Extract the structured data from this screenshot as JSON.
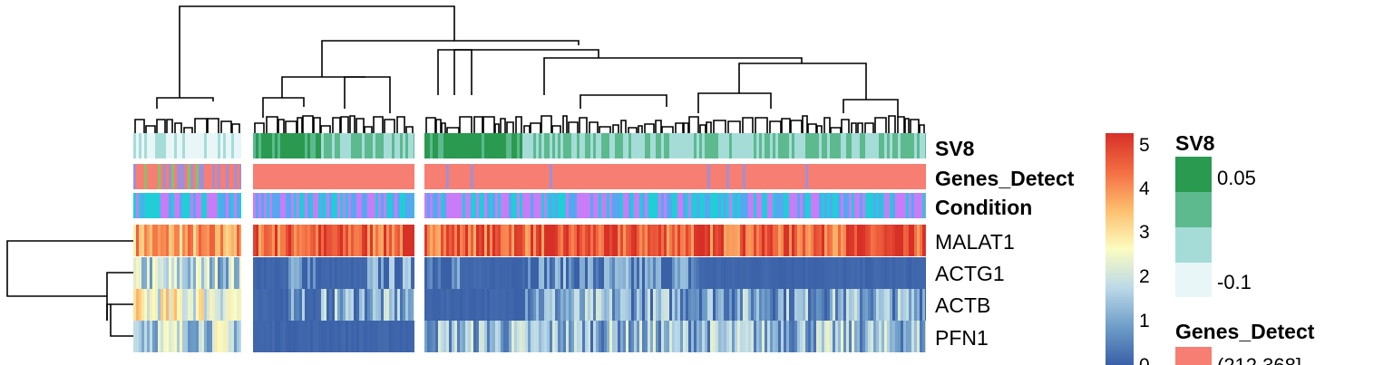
{
  "chart_data": {
    "type": "heatmap",
    "rows": [
      "MALAT1",
      "ACTG1",
      "ACTB",
      "PFN1"
    ],
    "column_annotations": [
      "SV8",
      "Genes_Detect",
      "Condition"
    ],
    "color_scale": {
      "min": 0,
      "max": 5,
      "ticks": [
        "0",
        "1",
        "2",
        "3",
        "4",
        "5"
      ],
      "colors": [
        "#3a60a8",
        "#6f9ec9",
        "#bcd9e8",
        "#fbfcc0",
        "#fdbf6f",
        "#f46d43",
        "#d73027"
      ]
    },
    "column_groups": [
      {
        "MALAT1": 3.6,
        "ACTG1": 1.6,
        "ACTB": 2.4,
        "PFN1": 1.7
      },
      {
        "MALAT1": 4.3,
        "ACTG1": 0.6,
        "ACTB": 1.0,
        "PFN1": 0.0
      },
      {
        "MALAT1": 4.4,
        "ACTG1": 0.5,
        "ACTB": 1.0,
        "PFN1": 1.2
      }
    ],
    "legends": [
      {
        "title": "SV8",
        "items": [
          {
            "label": "0.05",
            "color": "#2a9a50"
          },
          {
            "label": "",
            "color": "#5cba8e"
          },
          {
            "label": "",
            "color": "#a6dcd8"
          },
          {
            "label": "-0.1",
            "color": "#e8f6f8"
          }
        ]
      },
      {
        "title": "Genes_Detect",
        "items": [
          {
            "label": "(212,368]",
            "color": "#f77e72"
          }
        ]
      }
    ],
    "annotation_colors": {
      "Genes_Detect": [
        "#f77e72",
        "#a08fd8",
        "#87c26a"
      ],
      "Condition": [
        "#c97cf7",
        "#21cdd7",
        "#55a8f0"
      ]
    }
  }
}
